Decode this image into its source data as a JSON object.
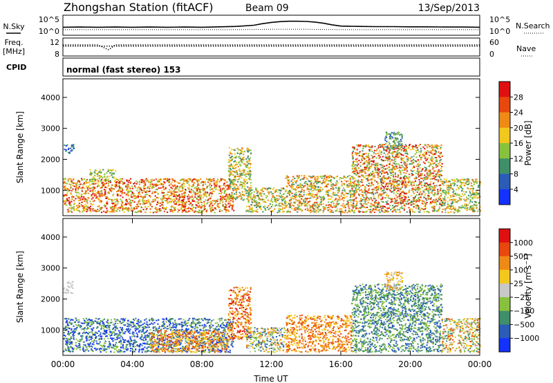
{
  "header": {
    "station": "Zhongshan Station (fitACF)",
    "beam": "Beam 09",
    "date": "13/Sep/2013"
  },
  "mode_text": "normal (fast stereo) 153",
  "chart_data": [
    {
      "type": "line",
      "id": "noise",
      "left_label": "N.Sky",
      "right_label": "N.Search",
      "left_ticks": [
        "10^5",
        "10^0"
      ],
      "right_ticks": [
        "10^5",
        "10^0"
      ],
      "xlim": [
        0,
        24
      ],
      "series": [
        {
          "style": "solid",
          "x": [
            0,
            1,
            2,
            3,
            4,
            5,
            6,
            7,
            8,
            9,
            10,
            11,
            11.5,
            12,
            12.5,
            13,
            13.5,
            14,
            14.5,
            15,
            15.5,
            16,
            17,
            18,
            19,
            20,
            21,
            22,
            23,
            24
          ],
          "values": [
            0.4,
            0.41,
            0.4,
            0.41,
            0.4,
            0.41,
            0.4,
            0.41,
            0.4,
            0.42,
            0.44,
            0.5,
            0.58,
            0.64,
            0.68,
            0.7,
            0.7,
            0.69,
            0.66,
            0.6,
            0.52,
            0.46,
            0.44,
            0.43,
            0.43,
            0.42,
            0.42,
            0.41,
            0.41,
            0.4
          ]
        },
        {
          "style": "dotted",
          "x": [
            0,
            2,
            4,
            6,
            8,
            10,
            12,
            14,
            16,
            18,
            20,
            22,
            24
          ],
          "values": [
            0.28,
            0.28,
            0.28,
            0.28,
            0.28,
            0.28,
            0.3,
            0.3,
            0.28,
            0.28,
            0.28,
            0.28,
            0.28
          ]
        }
      ]
    },
    {
      "type": "scatter",
      "id": "frequency",
      "left_label": "Freq.",
      "left_unit": "[MHz]",
      "right_label": "Nave",
      "left_ticks": [
        "12",
        "8"
      ],
      "right_ticks": [
        "60",
        "0"
      ],
      "xlim": [
        0,
        24
      ],
      "series": [
        {
          "name": "freq",
          "x": [
            0,
            1,
            2,
            2.4,
            2.6,
            2.8,
            3,
            4,
            6,
            8,
            10,
            12,
            14,
            16,
            18,
            20,
            22,
            24
          ],
          "values": [
            0.62,
            0.62,
            0.62,
            0.45,
            0.35,
            0.45,
            0.62,
            0.62,
            0.62,
            0.62,
            0.62,
            0.62,
            0.62,
            0.62,
            0.62,
            0.62,
            0.62,
            0.62
          ]
        },
        {
          "name": "nave",
          "x": [
            0,
            2,
            4,
            6,
            8,
            10,
            12,
            14,
            16,
            18,
            20,
            22,
            24
          ],
          "values": [
            0.55,
            0.55,
            0.55,
            0.55,
            0.55,
            0.55,
            0.55,
            0.55,
            0.55,
            0.55,
            0.55,
            0.55,
            0.55
          ]
        }
      ]
    },
    {
      "type": "heatmap",
      "id": "power",
      "ylabel": "Slant Range [km]",
      "y_ticks": [
        "1000",
        "2000",
        "3000",
        "4000"
      ],
      "ylim": [
        180,
        4600
      ],
      "xlim": [
        0,
        24
      ],
      "colorbar": {
        "label": "Power [dB]",
        "ticks": [
          "4",
          "8",
          "12",
          "16",
          "20",
          "24",
          "28"
        ],
        "colors": [
          "#1432ff",
          "#2a5cb8",
          "#3f8f6a",
          "#88c23c",
          "#f2c81e",
          "#f08a17",
          "#e8480e",
          "#e01010"
        ]
      },
      "regions": [
        {
          "t0": 0.0,
          "t1": 9.8,
          "r0": 300,
          "r1": 1400,
          "level": [
            3,
            7
          ]
        },
        {
          "t0": 0.0,
          "t1": 0.6,
          "r0": 2200,
          "r1": 2500,
          "level": [
            0,
            2
          ]
        },
        {
          "t0": 1.5,
          "t1": 3.0,
          "r0": 1300,
          "r1": 1700,
          "level": [
            2,
            4
          ]
        },
        {
          "t0": 9.5,
          "t1": 10.8,
          "r0": 700,
          "r1": 2400,
          "level": [
            2,
            5
          ]
        },
        {
          "t0": 10.5,
          "t1": 12.8,
          "r0": 300,
          "r1": 1100,
          "level": [
            2,
            5
          ]
        },
        {
          "t0": 12.8,
          "t1": 16.6,
          "r0": 300,
          "r1": 1500,
          "level": [
            2,
            6
          ]
        },
        {
          "t0": 16.6,
          "t1": 21.8,
          "r0": 300,
          "r1": 2500,
          "level": [
            2,
            7
          ]
        },
        {
          "t0": 18.5,
          "t1": 19.5,
          "r0": 2300,
          "r1": 2900,
          "level": [
            1,
            3
          ]
        },
        {
          "t0": 21.8,
          "t1": 24.0,
          "r0": 300,
          "r1": 1400,
          "level": [
            2,
            5
          ]
        }
      ]
    },
    {
      "type": "heatmap",
      "id": "velocity",
      "ylabel": "Slant Range [km]",
      "y_ticks": [
        "1000",
        "2000",
        "3000",
        "4000"
      ],
      "ylim": [
        180,
        4600
      ],
      "xlim": [
        0,
        24
      ],
      "x_ticks": [
        "00:00",
        "04:00",
        "08:00",
        "12:00",
        "16:00",
        "20:00",
        "00:00"
      ],
      "xlabel": "Time UT",
      "colorbar": {
        "label": "Velocity [m s^-1]",
        "ticks": [
          "1000",
          "500",
          "100",
          "25",
          "−25",
          "−100",
          "−500",
          "−1000"
        ],
        "colors": [
          "#1432ff",
          "#2a5cb8",
          "#3f8f6a",
          "#88c23c",
          "#c8c8c8",
          "#f2c81e",
          "#f08a17",
          "#e8480e",
          "#e01010"
        ]
      },
      "regions": [
        {
          "t0": 0.0,
          "t1": 9.8,
          "r0": 300,
          "r1": 1400,
          "level": [
            0,
            3
          ]
        },
        {
          "t0": 0.0,
          "t1": 0.6,
          "r0": 2200,
          "r1": 2600,
          "level": [
            4,
            4
          ]
        },
        {
          "t0": 5.0,
          "t1": 9.5,
          "r0": 300,
          "r1": 1000,
          "level": [
            5,
            7
          ]
        },
        {
          "t0": 9.5,
          "t1": 10.8,
          "r0": 700,
          "r1": 2400,
          "level": [
            5,
            8
          ]
        },
        {
          "t0": 10.5,
          "t1": 12.8,
          "r0": 300,
          "r1": 1100,
          "level": [
            1,
            6
          ]
        },
        {
          "t0": 12.8,
          "t1": 16.6,
          "r0": 300,
          "r1": 1500,
          "level": [
            5,
            7
          ]
        },
        {
          "t0": 16.6,
          "t1": 21.8,
          "r0": 300,
          "r1": 2500,
          "level": [
            1,
            3
          ]
        },
        {
          "t0": 18.5,
          "t1": 19.5,
          "r0": 2300,
          "r1": 2900,
          "level": [
            4,
            6
          ]
        },
        {
          "t0": 21.8,
          "t1": 24.0,
          "r0": 300,
          "r1": 1400,
          "level": [
            2,
            7
          ]
        }
      ]
    }
  ]
}
